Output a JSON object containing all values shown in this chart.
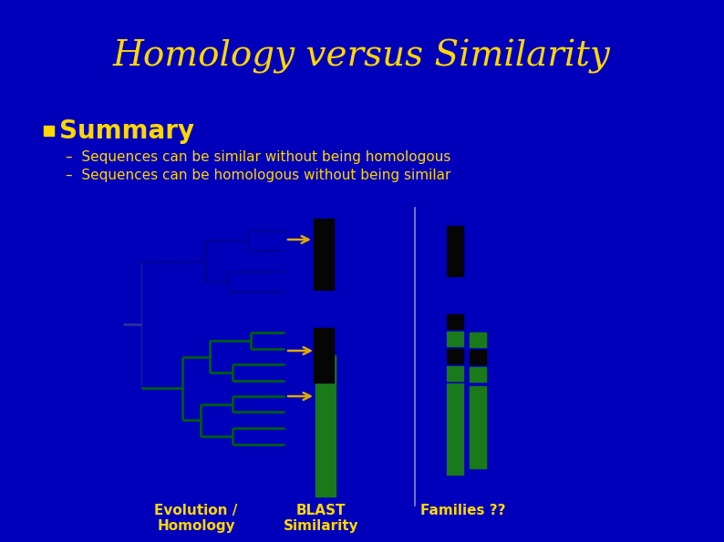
{
  "title": "Homology versus Similarity",
  "title_color": "#FFD700",
  "title_fontsize": 28,
  "bg_color": "#0000BB",
  "bullet_color": "#FFD700",
  "summary_text": "Summary",
  "summary_fontsize": 20,
  "bullet1": "Sequences can be similar without being homologous",
  "bullet2": "Sequences can be homologous without being similar",
  "bullet_text_fontsize": 11,
  "label_evolution": "Evolution /\nHomology",
  "label_blast": "BLAST\nSimilarity",
  "label_families": "Families ??",
  "label_fontsize": 11,
  "label_color": "#FFD700",
  "tree_blue_color": "#000099",
  "tree_green_color": "#006600",
  "seq_black_color": "#050505",
  "seq_green_color": "#1A7A1A",
  "arrow_color": "#DDAA00",
  "divider_color": "#8888CC",
  "fig_w": 7.94,
  "fig_h": 5.95,
  "dpi": 100
}
